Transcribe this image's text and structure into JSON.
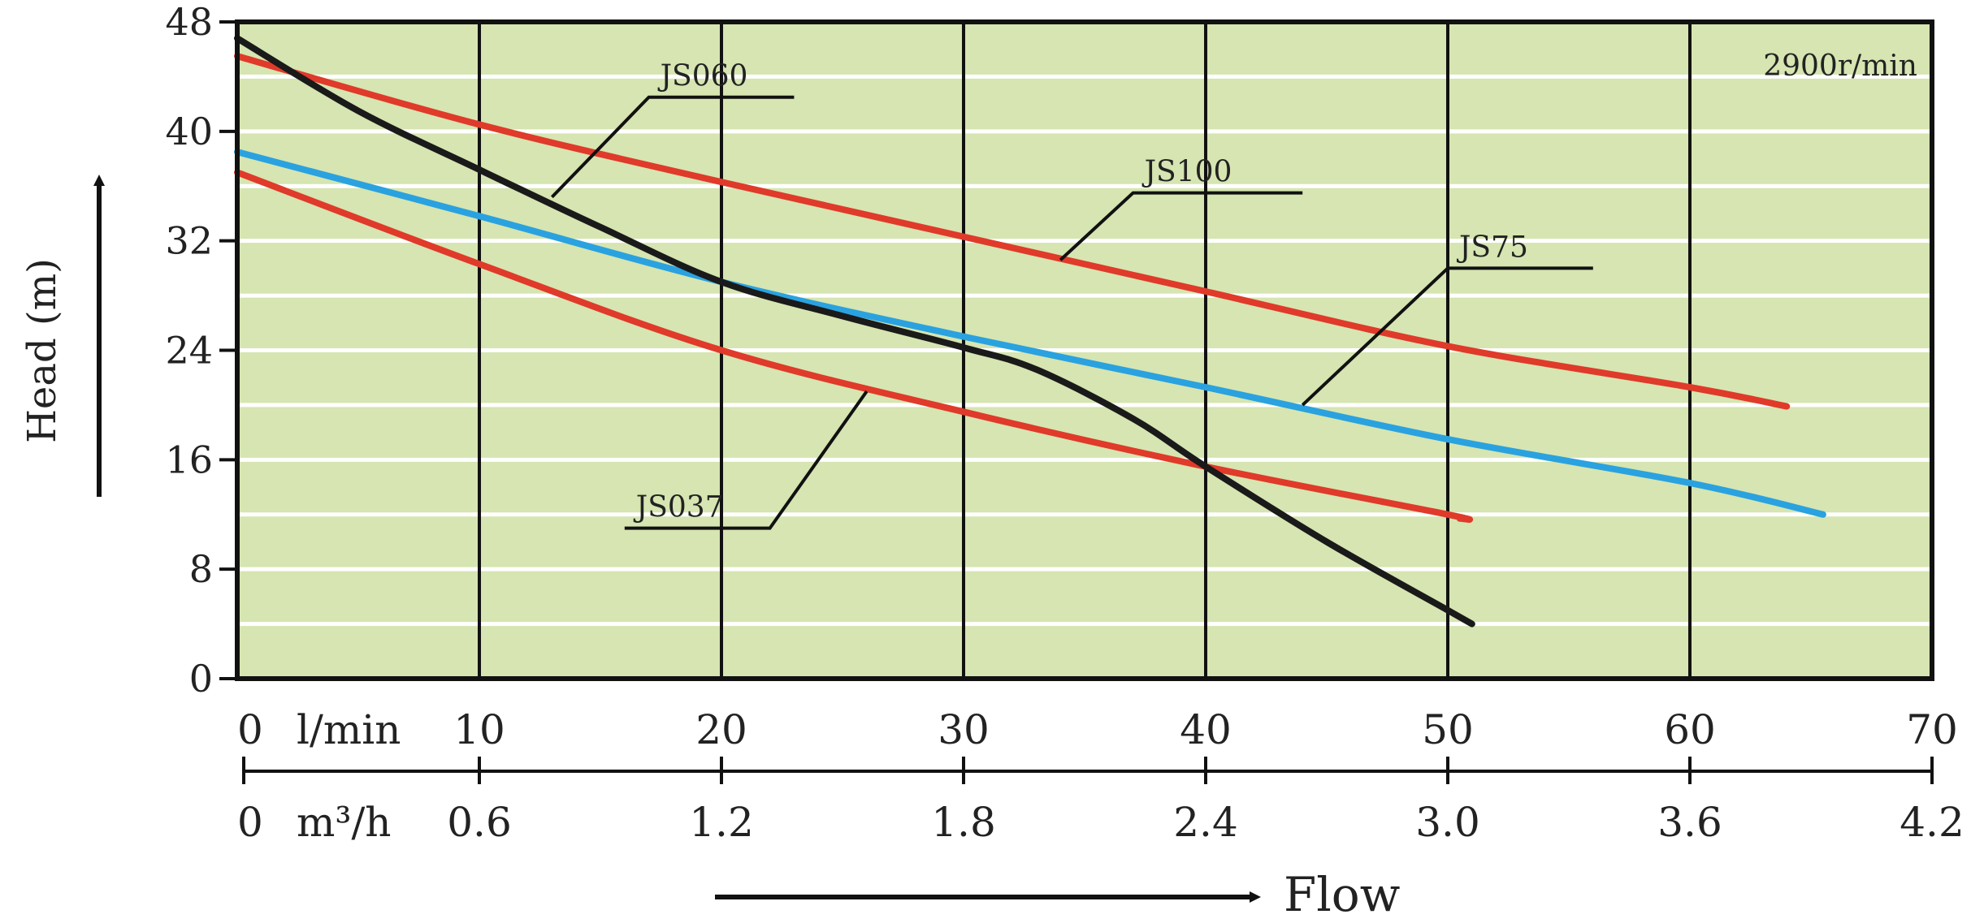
{
  "chart_data": {
    "type": "line",
    "ylabel": "Head (m)",
    "xlabel": "Flow",
    "speed_label": "2900r/min",
    "x_unit_primary": "l/min",
    "x_unit_secondary": "m³/h",
    "xlim": [
      0,
      70
    ],
    "ylim": [
      0,
      48
    ],
    "y_ticks": [
      0,
      8,
      16,
      24,
      32,
      40,
      48
    ],
    "x_ticks_lmin": [
      "0",
      "10",
      "20",
      "30",
      "40",
      "50",
      "60",
      "70"
    ],
    "x_ticks_m3h": [
      "0",
      "0.6",
      "1.2",
      "1.8",
      "2.4",
      "3.0",
      "3.6",
      "4.2"
    ],
    "grid": true,
    "background_color": "#d6e5b1",
    "series": [
      {
        "name": "JS060",
        "color": "#1a1a1a",
        "x": [
          0,
          5,
          10,
          15,
          20,
          25,
          30,
          33,
          37,
          40,
          45,
          50,
          51
        ],
        "y": [
          46.8,
          41.5,
          37.2,
          33.0,
          29.0,
          26.5,
          24.2,
          22.6,
          19.0,
          15.5,
          10.0,
          5.0,
          4.0
        ]
      },
      {
        "name": "JS100",
        "color": "#e03a2a",
        "x": [
          0,
          10,
          20,
          30,
          40,
          50,
          60,
          64
        ],
        "y": [
          45.5,
          40.5,
          36.3,
          32.3,
          28.3,
          24.3,
          21.3,
          19.9
        ]
      },
      {
        "name": "JS75",
        "color": "#2aa2e0",
        "x": [
          0,
          10,
          20,
          30,
          40,
          50,
          60,
          65.5
        ],
        "y": [
          38.5,
          33.8,
          29.0,
          25.0,
          21.3,
          17.5,
          14.3,
          12.0
        ]
      },
      {
        "name": "JS037",
        "color": "#e03a2a",
        "x": [
          0,
          10,
          20,
          30,
          40,
          50,
          50.5
        ],
        "y": [
          37.0,
          30.3,
          24.0,
          19.5,
          15.5,
          12.0,
          11.7
        ]
      }
    ],
    "annotations": [
      {
        "label": "JS060",
        "series": "JS060",
        "anchor_x": 13,
        "anchor_y": 35.2,
        "elbow_x": 17,
        "elbow_y": 42.5,
        "end_x": 23,
        "end_y": 42.5
      },
      {
        "label": "JS100",
        "series": "JS100",
        "anchor_x": 34,
        "anchor_y": 30.6,
        "elbow_x": 37,
        "elbow_y": 35.5,
        "end_x": 44,
        "end_y": 35.5
      },
      {
        "label": "JS75",
        "series": "JS75",
        "anchor_x": 44,
        "anchor_y": 20.0,
        "elbow_x": 50,
        "elbow_y": 30.0,
        "end_x": 56,
        "end_y": 30.0
      },
      {
        "label": "JS037",
        "series": "JS037",
        "anchor_x": 26,
        "anchor_y": 21.0,
        "elbow_x": 22,
        "elbow_y": 11.0,
        "end_x": 16,
        "end_y": 11.0
      }
    ]
  }
}
